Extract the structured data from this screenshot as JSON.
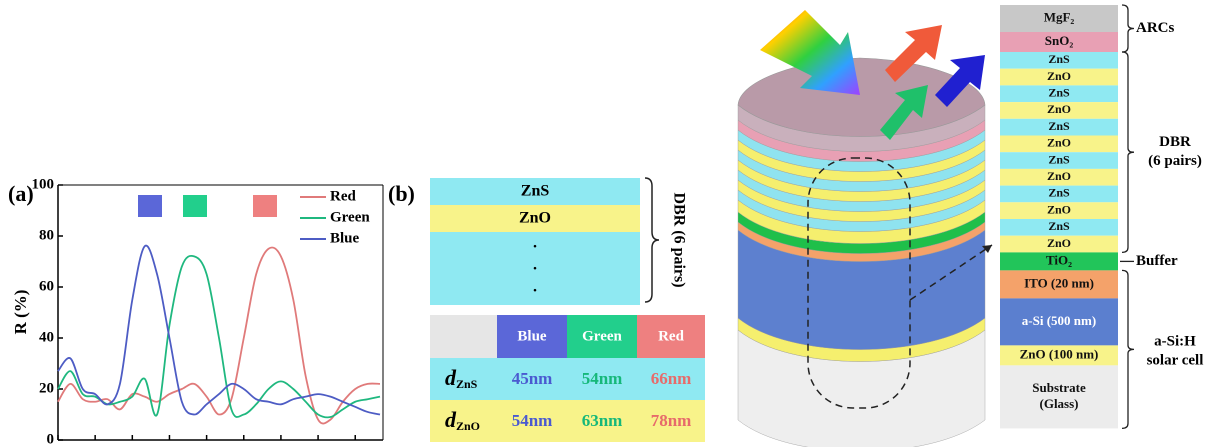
{
  "chart_data": {
    "type": "line",
    "panel_label": "(a)",
    "ylabel": "R (%)",
    "categories": [
      null,
      null,
      null,
      null,
      null,
      null,
      null,
      null,
      null,
      null,
      null,
      null,
      null,
      null,
      null,
      null,
      null,
      null,
      null,
      null,
      null,
      null,
      null,
      null,
      null,
      null,
      null
    ],
    "series": [
      {
        "name": "Red",
        "color": "#e07a7a",
        "values": [
          15,
          22,
          16,
          15,
          16,
          12,
          18,
          17,
          15,
          18,
          20,
          22,
          17,
          10,
          16,
          40,
          65,
          75,
          72,
          55,
          25,
          8,
          8,
          15,
          20,
          22,
          22
        ]
      },
      {
        "name": "Green",
        "color": "#1fb87f",
        "values": [
          20,
          27,
          18,
          17,
          14,
          15,
          17,
          24,
          10,
          45,
          68,
          72,
          65,
          40,
          12,
          10,
          14,
          20,
          23,
          20,
          15,
          10,
          9,
          12,
          15,
          16,
          17
        ]
      },
      {
        "name": "Blue",
        "color": "#4d5cc4",
        "values": [
          27,
          32,
          20,
          18,
          14,
          22,
          55,
          76,
          65,
          40,
          15,
          10,
          14,
          18,
          22,
          20,
          16,
          15,
          14,
          16,
          17,
          18,
          17,
          15,
          13,
          11,
          10
        ]
      }
    ],
    "ylim": [
      0,
      100
    ],
    "yticks": [
      0,
      20,
      40,
      60,
      80,
      100
    ],
    "legend": "upper right"
  },
  "panel_b": {
    "label": "(b)",
    "layers": [
      "ZnS",
      "ZnO"
    ],
    "ellipsis": [
      ".",
      ".",
      "."
    ],
    "bracket_label": "DBR (6 pairs)",
    "table": {
      "header": [
        "Blue",
        "Green",
        "Red"
      ],
      "rows": [
        {
          "symbol": "d",
          "subscript": "ZnS",
          "cells": [
            "45nm",
            "54nm",
            "66nm"
          ]
        },
        {
          "symbol": "d",
          "subscript": "ZnO",
          "cells": [
            "54nm",
            "63nm",
            "78nm"
          ]
        }
      ]
    }
  },
  "device": {
    "layers": [
      [
        "MgF₂"
      ],
      [
        "SnO₂"
      ],
      [
        "ZnS"
      ],
      [
        "ZnO"
      ],
      [
        "ZnS"
      ],
      [
        "ZnO"
      ],
      [
        "ZnS"
      ],
      [
        "ZnO"
      ],
      [
        "ZnS"
      ],
      [
        "ZnO"
      ],
      [
        "ZnS"
      ],
      [
        "ZnO"
      ],
      [
        "ZnS"
      ],
      [
        "ZnO"
      ],
      [
        "TiO₂"
      ],
      [
        "ITO (20 nm)"
      ],
      [
        "a-Si (500 nm)"
      ],
      [
        "ZnO (100 nm)"
      ],
      [
        "Substrate",
        "(Glass)"
      ]
    ],
    "groups": [
      [
        "ARCs"
      ],
      [
        "DBR",
        "(6 pairs)"
      ],
      [
        "Buffer"
      ],
      [
        "a-Si:H",
        "solar cell"
      ]
    ]
  }
}
